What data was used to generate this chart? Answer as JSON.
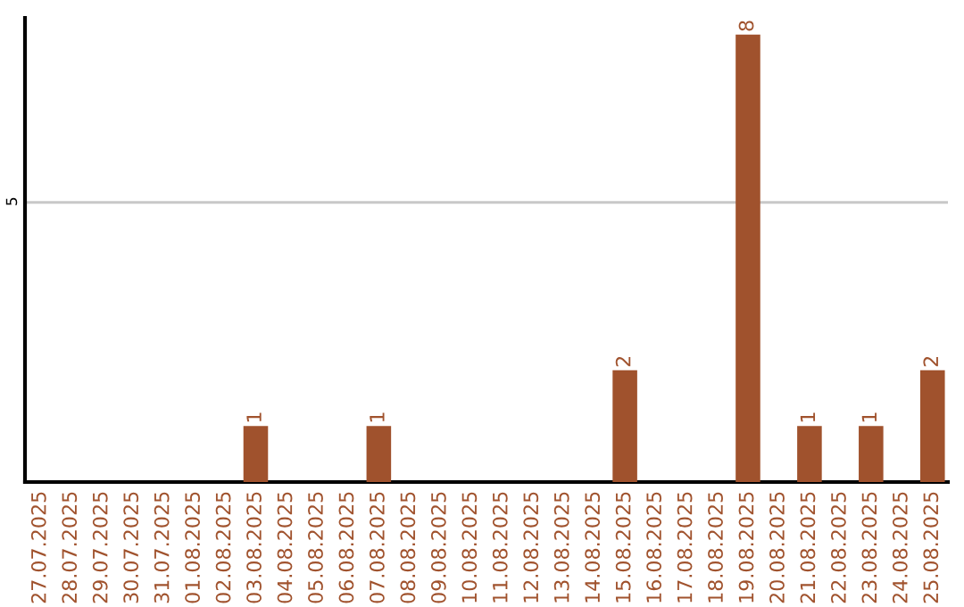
{
  "chart_data": {
    "type": "bar",
    "categories": [
      "27.07.2025",
      "28.07.2025",
      "29.07.2025",
      "30.07.2025",
      "31.07.2025",
      "01.08.2025",
      "02.08.2025",
      "03.08.2025",
      "04.08.2025",
      "05.08.2025",
      "06.08.2025",
      "07.08.2025",
      "08.08.2025",
      "09.08.2025",
      "10.08.2025",
      "11.08.2025",
      "12.08.2025",
      "13.08.2025",
      "14.08.2025",
      "15.08.2025",
      "16.08.2025",
      "17.08.2025",
      "18.08.2025",
      "19.08.2025",
      "20.08.2025",
      "21.08.2025",
      "22.08.2025",
      "23.08.2025",
      "24.08.2025",
      "25.08.2025"
    ],
    "values": [
      0,
      0,
      0,
      0,
      0,
      0,
      0,
      1,
      0,
      0,
      0,
      1,
      0,
      0,
      0,
      0,
      0,
      0,
      0,
      2,
      0,
      0,
      0,
      8,
      0,
      1,
      0,
      1,
      0,
      2
    ],
    "value_labels": [
      null,
      null,
      null,
      null,
      null,
      null,
      null,
      "1",
      null,
      null,
      null,
      "1",
      null,
      null,
      null,
      null,
      null,
      null,
      null,
      "2",
      null,
      null,
      null,
      "8",
      null,
      "1",
      null,
      "1",
      null,
      "2"
    ],
    "color": "#a0522d",
    "ylim": [
      0,
      8.3
    ],
    "yticks": [
      5
    ],
    "grid": "y",
    "legend": false
  }
}
